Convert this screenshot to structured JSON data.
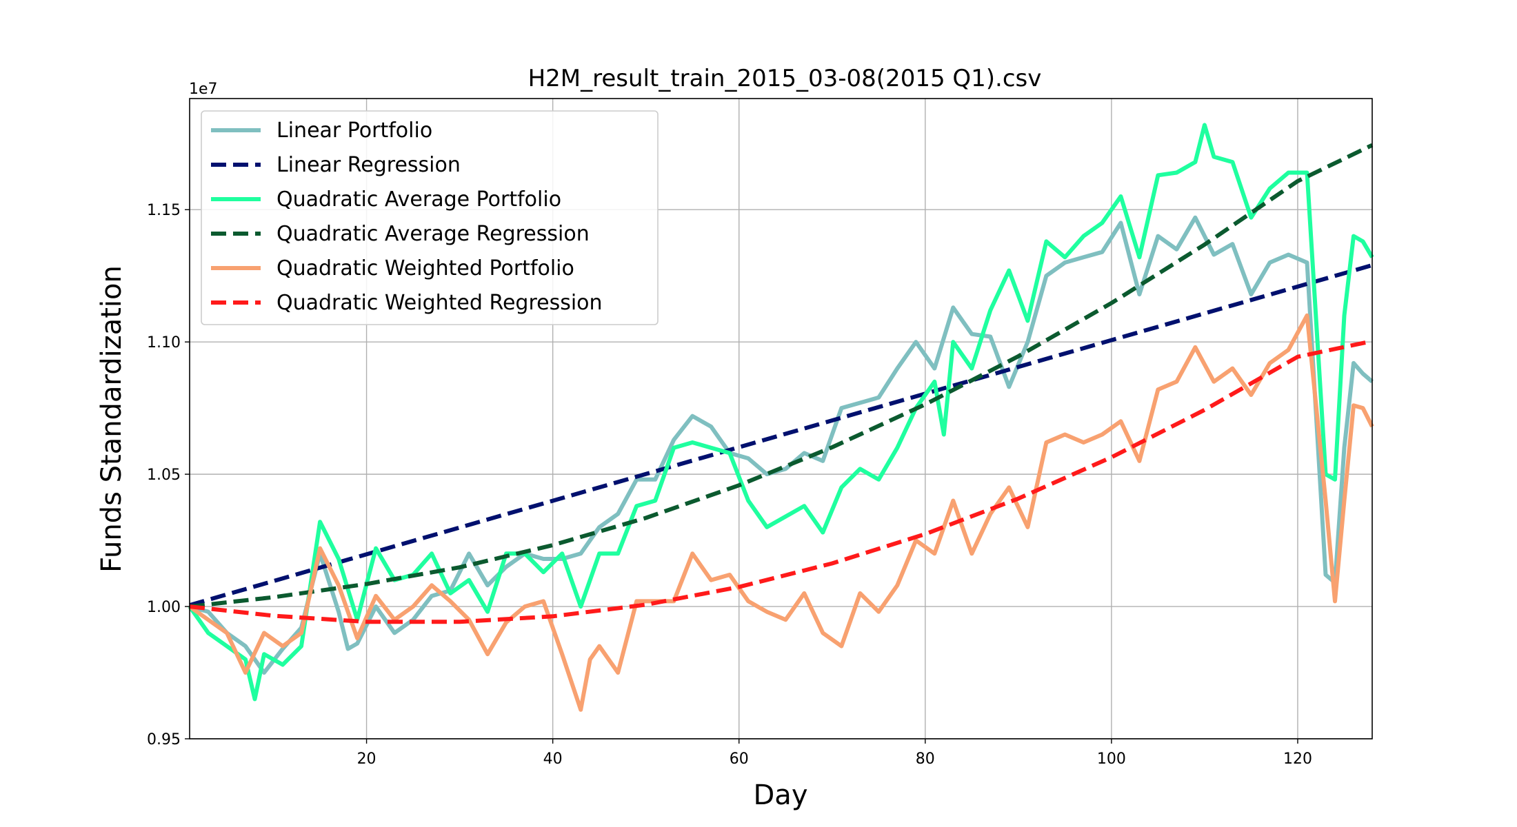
{
  "chart_data": {
    "type": "line",
    "title": "H2M_result_train_2015_03-08(2015 Q1).csv",
    "xlabel": "Day",
    "ylabel": "Funds Standardization",
    "y_offset_label": "1e7",
    "xlim": [
      1,
      128
    ],
    "ylim": [
      0.95,
      1.192
    ],
    "x_ticks": [
      20,
      40,
      60,
      80,
      100,
      120
    ],
    "y_ticks": [
      "0.95",
      "1.00",
      "1.05",
      "1.10",
      "1.15"
    ],
    "grid": true,
    "legend_position": "top-left",
    "series": [
      {
        "name": "Linear Portfolio",
        "style": "solid",
        "color": "#7fbfc0",
        "x": [
          1,
          3,
          5,
          7,
          9,
          11,
          13,
          15,
          17,
          18,
          19,
          21,
          23,
          25,
          27,
          29,
          31,
          33,
          35,
          37,
          39,
          41,
          43,
          45,
          47,
          49,
          51,
          53,
          55,
          57,
          59,
          61,
          63,
          65,
          67,
          69,
          71,
          73,
          75,
          77,
          79,
          81,
          83,
          85,
          87,
          89,
          91,
          93,
          95,
          97,
          99,
          101,
          103,
          105,
          107,
          109,
          111,
          113,
          115,
          117,
          119,
          121,
          123,
          124,
          125,
          126,
          127,
          128
        ],
        "y": [
          1.0,
          0.998,
          0.99,
          0.985,
          0.975,
          0.984,
          0.992,
          1.02,
          0.998,
          0.984,
          0.986,
          1.0,
          0.99,
          0.995,
          1.004,
          1.006,
          1.02,
          1.008,
          1.015,
          1.02,
          1.018,
          1.018,
          1.02,
          1.03,
          1.035,
          1.048,
          1.048,
          1.063,
          1.072,
          1.068,
          1.058,
          1.056,
          1.05,
          1.052,
          1.058,
          1.055,
          1.075,
          1.077,
          1.079,
          1.09,
          1.1,
          1.09,
          1.113,
          1.103,
          1.102,
          1.083,
          1.1,
          1.125,
          1.13,
          1.132,
          1.134,
          1.145,
          1.118,
          1.14,
          1.135,
          1.147,
          1.133,
          1.137,
          1.118,
          1.13,
          1.133,
          1.13,
          1.012,
          1.009,
          1.06,
          1.092,
          1.088,
          1.085
        ]
      },
      {
        "name": "Linear Regression",
        "style": "dashed",
        "color": "#00106e",
        "x": [
          1,
          128
        ],
        "y": [
          1.0005,
          1.129
        ]
      },
      {
        "name": "Quadratic Average Portfolio",
        "style": "solid",
        "color": "#1fff9f",
        "x": [
          1,
          3,
          5,
          7,
          8,
          9,
          11,
          13,
          15,
          17,
          19,
          21,
          23,
          25,
          27,
          29,
          31,
          33,
          35,
          37,
          39,
          41,
          43,
          45,
          47,
          49,
          51,
          53,
          55,
          57,
          59,
          61,
          63,
          65,
          67,
          69,
          71,
          73,
          75,
          77,
          79,
          81,
          82,
          83,
          85,
          87,
          89,
          91,
          93,
          95,
          97,
          99,
          101,
          103,
          105,
          107,
          109,
          110,
          111,
          113,
          115,
          117,
          119,
          121,
          123,
          124,
          125,
          126,
          127,
          128
        ],
        "y": [
          1.0,
          0.99,
          0.985,
          0.98,
          0.965,
          0.982,
          0.978,
          0.985,
          1.032,
          1.018,
          0.995,
          1.022,
          1.01,
          1.012,
          1.02,
          1.005,
          1.01,
          0.998,
          1.02,
          1.02,
          1.013,
          1.02,
          1.0,
          1.02,
          1.02,
          1.038,
          1.04,
          1.06,
          1.062,
          1.06,
          1.058,
          1.04,
          1.03,
          1.034,
          1.038,
          1.028,
          1.045,
          1.052,
          1.048,
          1.06,
          1.075,
          1.085,
          1.065,
          1.1,
          1.09,
          1.112,
          1.127,
          1.108,
          1.138,
          1.132,
          1.14,
          1.145,
          1.155,
          1.132,
          1.163,
          1.164,
          1.168,
          1.182,
          1.17,
          1.168,
          1.147,
          1.158,
          1.164,
          1.164,
          1.05,
          1.048,
          1.11,
          1.14,
          1.138,
          1.132
        ]
      },
      {
        "name": "Quadratic Average Regression",
        "style": "dashed",
        "color": "#0b5a2f",
        "x": [
          1,
          10,
          20,
          30,
          40,
          50,
          60,
          70,
          80,
          90,
          100,
          110,
          120,
          128
        ],
        "y": [
          1.0,
          1.0035,
          1.0085,
          1.0148,
          1.0232,
          1.0335,
          1.0458,
          1.0602,
          1.0764,
          1.0946,
          1.1147,
          1.1368,
          1.1608,
          1.1744
        ]
      },
      {
        "name": "Quadratic Weighted Portfolio",
        "style": "solid",
        "color": "#f8a170",
        "x": [
          1,
          3,
          5,
          7,
          9,
          11,
          13,
          15,
          17,
          19,
          21,
          23,
          25,
          27,
          29,
          31,
          33,
          35,
          37,
          39,
          41,
          43,
          44,
          45,
          47,
          49,
          51,
          53,
          55,
          57,
          59,
          61,
          63,
          65,
          67,
          69,
          71,
          73,
          75,
          77,
          79,
          81,
          83,
          85,
          87,
          89,
          91,
          93,
          95,
          97,
          99,
          101,
          103,
          105,
          107,
          109,
          111,
          113,
          115,
          117,
          119,
          121,
          123,
          124,
          125,
          126,
          127,
          128
        ],
        "y": [
          1.0,
          0.995,
          0.99,
          0.975,
          0.99,
          0.985,
          0.99,
          1.022,
          1.008,
          0.988,
          1.004,
          0.995,
          1.0,
          1.008,
          1.002,
          0.995,
          0.982,
          0.994,
          1.0,
          1.002,
          0.982,
          0.961,
          0.98,
          0.985,
          0.975,
          1.002,
          1.002,
          1.002,
          1.02,
          1.01,
          1.012,
          1.002,
          0.998,
          0.995,
          1.005,
          0.99,
          0.985,
          1.005,
          0.998,
          1.008,
          1.025,
          1.02,
          1.04,
          1.02,
          1.035,
          1.045,
          1.03,
          1.062,
          1.065,
          1.062,
          1.065,
          1.07,
          1.055,
          1.082,
          1.085,
          1.098,
          1.085,
          1.09,
          1.08,
          1.092,
          1.097,
          1.11,
          1.04,
          1.002,
          1.04,
          1.076,
          1.075,
          1.068
        ]
      },
      {
        "name": "Quadratic Weighted Regression",
        "style": "dashed",
        "color": "#ff1a1a",
        "x": [
          1,
          10,
          20,
          30,
          40,
          50,
          60,
          70,
          80,
          90,
          100,
          110,
          120,
          128
        ],
        "y": [
          1.0,
          0.9965,
          0.9942,
          0.9942,
          0.9963,
          1.0007,
          1.0074,
          1.0163,
          1.0274,
          1.0408,
          1.0564,
          1.0743,
          1.0944,
          1.1003
        ]
      }
    ]
  }
}
